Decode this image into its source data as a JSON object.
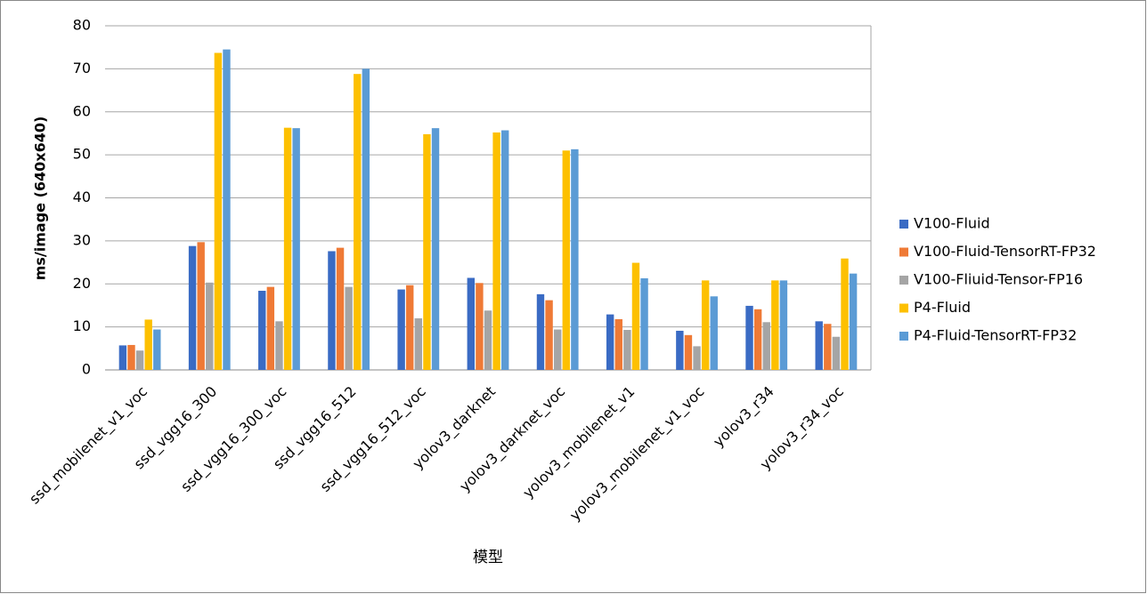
{
  "chart_data": {
    "type": "bar",
    "x_label": "模型",
    "y_label": "ms/image (640x640)",
    "categories": [
      "ssd_mobilenet_v1_voc",
      "ssd_vgg16_300",
      "ssd_vgg16_300_voc",
      "ssd_vgg16_512",
      "ssd_vgg16_512_voc",
      "yolov3_darknet",
      "yolov3_darknet_voc",
      "yolov3_mobilenet_v1",
      "yolov3_mobilenet_v1_voc",
      "yolov3_r34",
      "yolov3_r34_voc"
    ],
    "series": [
      {
        "name": "V100-Fluid",
        "color": "#3a6bc4",
        "values": [
          5.7,
          28.8,
          18.4,
          27.6,
          18.7,
          21.4,
          17.6,
          12.9,
          9.1,
          14.9,
          11.3
        ]
      },
      {
        "name": "V100-Fluid-TensorRT-FP32",
        "color": "#ef7a36",
        "values": [
          5.8,
          29.7,
          19.3,
          28.4,
          19.7,
          20.2,
          16.2,
          11.8,
          8.1,
          14.1,
          10.7
        ]
      },
      {
        "name": "V100-Fliuid-Tensor-FP16",
        "color": "#a5a5a5",
        "values": [
          4.5,
          20.3,
          11.3,
          19.3,
          12.0,
          13.8,
          9.4,
          9.3,
          5.5,
          11.1,
          7.7
        ]
      },
      {
        "name": "P4-Fluid",
        "color": "#fdc000",
        "values": [
          11.7,
          73.7,
          56.3,
          68.8,
          54.8,
          55.2,
          51.0,
          24.9,
          20.8,
          20.8,
          25.9
        ]
      },
      {
        "name": "P4-Fluid-TensorRT-FP32",
        "color": "#5b9bd5",
        "values": [
          9.4,
          74.5,
          56.2,
          70.0,
          56.2,
          55.7,
          51.3,
          21.3,
          17.1,
          20.8,
          22.4
        ]
      }
    ],
    "ylim": [
      0,
      80
    ],
    "yticks": [
      0,
      10,
      20,
      30,
      40,
      50,
      60,
      70,
      80
    ],
    "grid": true,
    "legend": "right"
  }
}
